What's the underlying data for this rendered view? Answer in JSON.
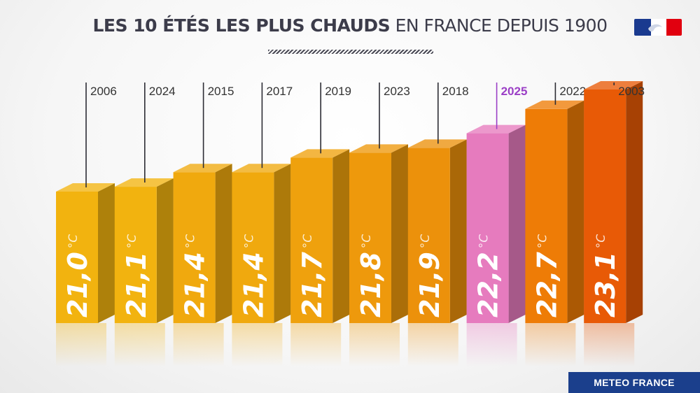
{
  "header": {
    "title_bold": "LES 10 ÉTÉS LES PLUS CHAUDS",
    "title_light": "EN FRANCE DEPUIS 1900"
  },
  "footer": {
    "source": "METEO FRANCE"
  },
  "icons": {
    "flag": "republique-francaise-logo-icon"
  },
  "chart_data": {
    "type": "bar",
    "title": "LES 10 ÉTÉS LES PLUS CHAUDS EN FRANCE DEPUIS 1900",
    "categories": [
      "2006",
      "2024",
      "2015",
      "2017",
      "2019",
      "2023",
      "2018",
      "2025",
      "2022",
      "2003"
    ],
    "values": [
      21.0,
      21.1,
      21.4,
      21.4,
      21.7,
      21.8,
      21.9,
      22.2,
      22.7,
      23.1
    ],
    "value_labels": [
      "21,0",
      "21,1",
      "21,4",
      "21,4",
      "21,7",
      "21,8",
      "21,9",
      "22,2",
      "22,7",
      "23,1"
    ],
    "unit": "°C",
    "highlight": "2025",
    "colors": {
      "bars": [
        "#f2b30f",
        "#f2b30f",
        "#f0a90e",
        "#f0a90e",
        "#efa10d",
        "#ee990c",
        "#ec910b",
        "#e67bbe",
        "#ee7c06",
        "#e85a06"
      ],
      "highlight_label": "#9b3fc6",
      "label": "#333333"
    },
    "grid": false,
    "legend": "none"
  }
}
